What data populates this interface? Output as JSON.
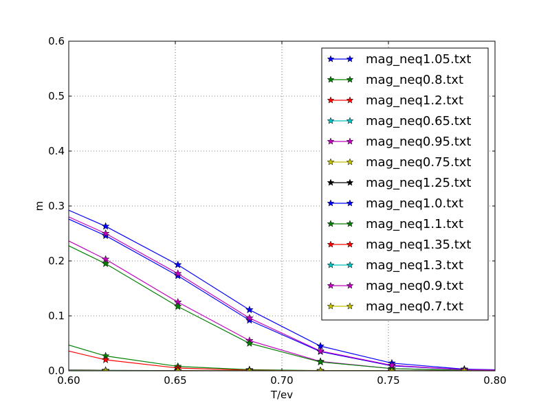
{
  "chart_data": {
    "type": "line",
    "title": "",
    "xlabel": "T/ev",
    "ylabel": "m",
    "xlim": [
      0.6,
      0.8
    ],
    "ylim": [
      0.0,
      0.6
    ],
    "xticks": [
      "0.60",
      "0.65",
      "0.70",
      "0.75",
      "0.80"
    ],
    "yticks": [
      "0.0",
      "0.1",
      "0.2",
      "0.3",
      "0.4",
      "0.5",
      "0.6"
    ],
    "grid": true,
    "legend_position": "top-right",
    "marker": "star",
    "x": [
      0.5955,
      0.6173,
      0.6512,
      0.6848,
      0.7181,
      0.7516,
      0.7856,
      0.8193
    ],
    "series": [
      {
        "name": "mag_neq1.05.txt",
        "color": "#0000ff",
        "values": [
          0.3,
          0.263,
          0.193,
          0.111,
          0.045,
          0.014,
          0.003,
          0.0005
        ]
      },
      {
        "name": "mag_neq0.8.txt",
        "color": "#008000",
        "values": [
          0.052,
          0.027,
          0.008,
          0.002,
          0.0004,
          0.0001,
          0.0,
          0.0
        ]
      },
      {
        "name": "mag_neq1.2.txt",
        "color": "#ff0000",
        "values": [
          0.04,
          0.02,
          0.005,
          0.001,
          0.0002,
          0.0,
          0.0,
          0.0
        ]
      },
      {
        "name": "mag_neq0.65.txt",
        "color": "#00bfbf",
        "values": [
          0.0003,
          0.0001,
          0.0,
          0.0,
          0.0,
          0.0,
          0.0,
          0.0
        ]
      },
      {
        "name": "mag_neq0.95.txt",
        "color": "#bf00bf",
        "values": [
          0.245,
          0.203,
          0.125,
          0.055,
          0.017,
          0.004,
          0.0008,
          0.0001
        ]
      },
      {
        "name": "mag_neq0.75.txt",
        "color": "#bfbf00",
        "values": [
          0.0008,
          0.0004,
          0.0001,
          0.0,
          0.0,
          0.0,
          0.0,
          0.0
        ]
      },
      {
        "name": "mag_neq1.25.txt",
        "color": "#000000",
        "values": [
          0.0015,
          0.0008,
          0.0003,
          0.0001,
          0.0,
          0.0,
          0.0,
          0.0
        ]
      },
      {
        "name": "mag_neq1.0.txt",
        "color": "#0000ff",
        "values": [
          0.284,
          0.246,
          0.173,
          0.092,
          0.035,
          0.009,
          0.002,
          0.0003
        ]
      },
      {
        "name": "mag_neq1.1.txt",
        "color": "#008000",
        "values": [
          0.236,
          0.195,
          0.117,
          0.05,
          0.016,
          0.004,
          0.0008,
          0.0001
        ]
      },
      {
        "name": "mag_neq1.35.txt",
        "color": "#ff0000",
        "values": [
          0.0004,
          0.0002,
          0.0001,
          0.0,
          0.0,
          0.0,
          0.0,
          0.0
        ]
      },
      {
        "name": "mag_neq1.3.txt",
        "color": "#00bfbf",
        "values": [
          0.0006,
          0.0003,
          0.0001,
          0.0,
          0.0,
          0.0,
          0.0,
          0.0
        ]
      },
      {
        "name": "mag_neq0.9.txt",
        "color": "#bf00bf",
        "values": [
          0.288,
          0.25,
          0.177,
          0.096,
          0.036,
          0.01,
          0.002,
          0.0003
        ]
      },
      {
        "name": "mag_neq0.7.txt",
        "color": "#bfbf00",
        "values": [
          0.0002,
          0.0001,
          0.0,
          0.0,
          0.0,
          0.0,
          0.0,
          0.0
        ]
      }
    ]
  }
}
